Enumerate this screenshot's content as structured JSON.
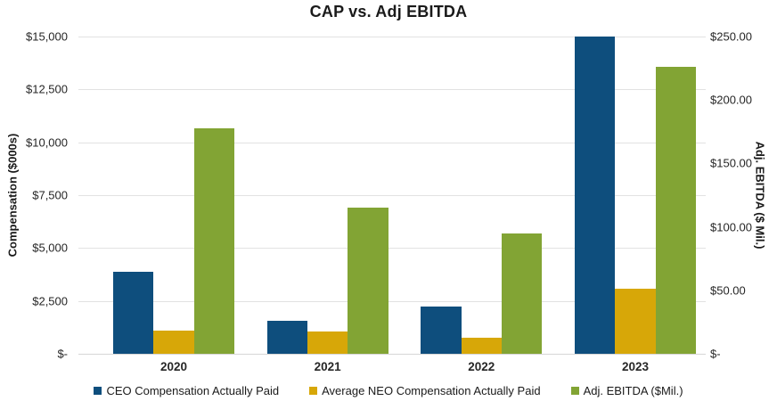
{
  "chart_data": {
    "type": "bar",
    "title": "CAP vs. Adj EBITDA",
    "categories": [
      "2020",
      "2021",
      "2022",
      "2023"
    ],
    "series": [
      {
        "name": "CEO Compensation Actually Paid",
        "axis": "left",
        "color": "#0e4e7d",
        "values": [
          3870,
          1550,
          2250,
          14990
        ]
      },
      {
        "name": "Average NEO Compensation Actually Paid",
        "axis": "left",
        "color": "#d7a708",
        "values": [
          1090,
          1050,
          740,
          3080
        ]
      },
      {
        "name": "Adj. EBITDA ($Mil.)",
        "axis": "right",
        "color": "#82a434",
        "values": [
          178,
          115,
          95,
          226
        ]
      }
    ],
    "left_axis": {
      "label": "Compensation ($000s)",
      "max": 15000,
      "ticks": [
        "$15,000",
        "$12,500",
        "$10,000",
        "$7,500",
        "$5,000",
        "$2,500",
        "$-"
      ]
    },
    "right_axis": {
      "label": "Adj. EBITDA ($ Mil.)",
      "max": 250,
      "ticks": [
        "$250.00",
        "$200.00",
        "$150.00",
        "$100.00",
        "$50.00",
        "$-"
      ]
    },
    "legend_position": "bottom",
    "grid": "horizontal",
    "colors": {
      "gridline": "#e2e2e2",
      "axis_text": "#262626",
      "title_text": "#1a1a1a",
      "background": "#ffffff"
    }
  }
}
